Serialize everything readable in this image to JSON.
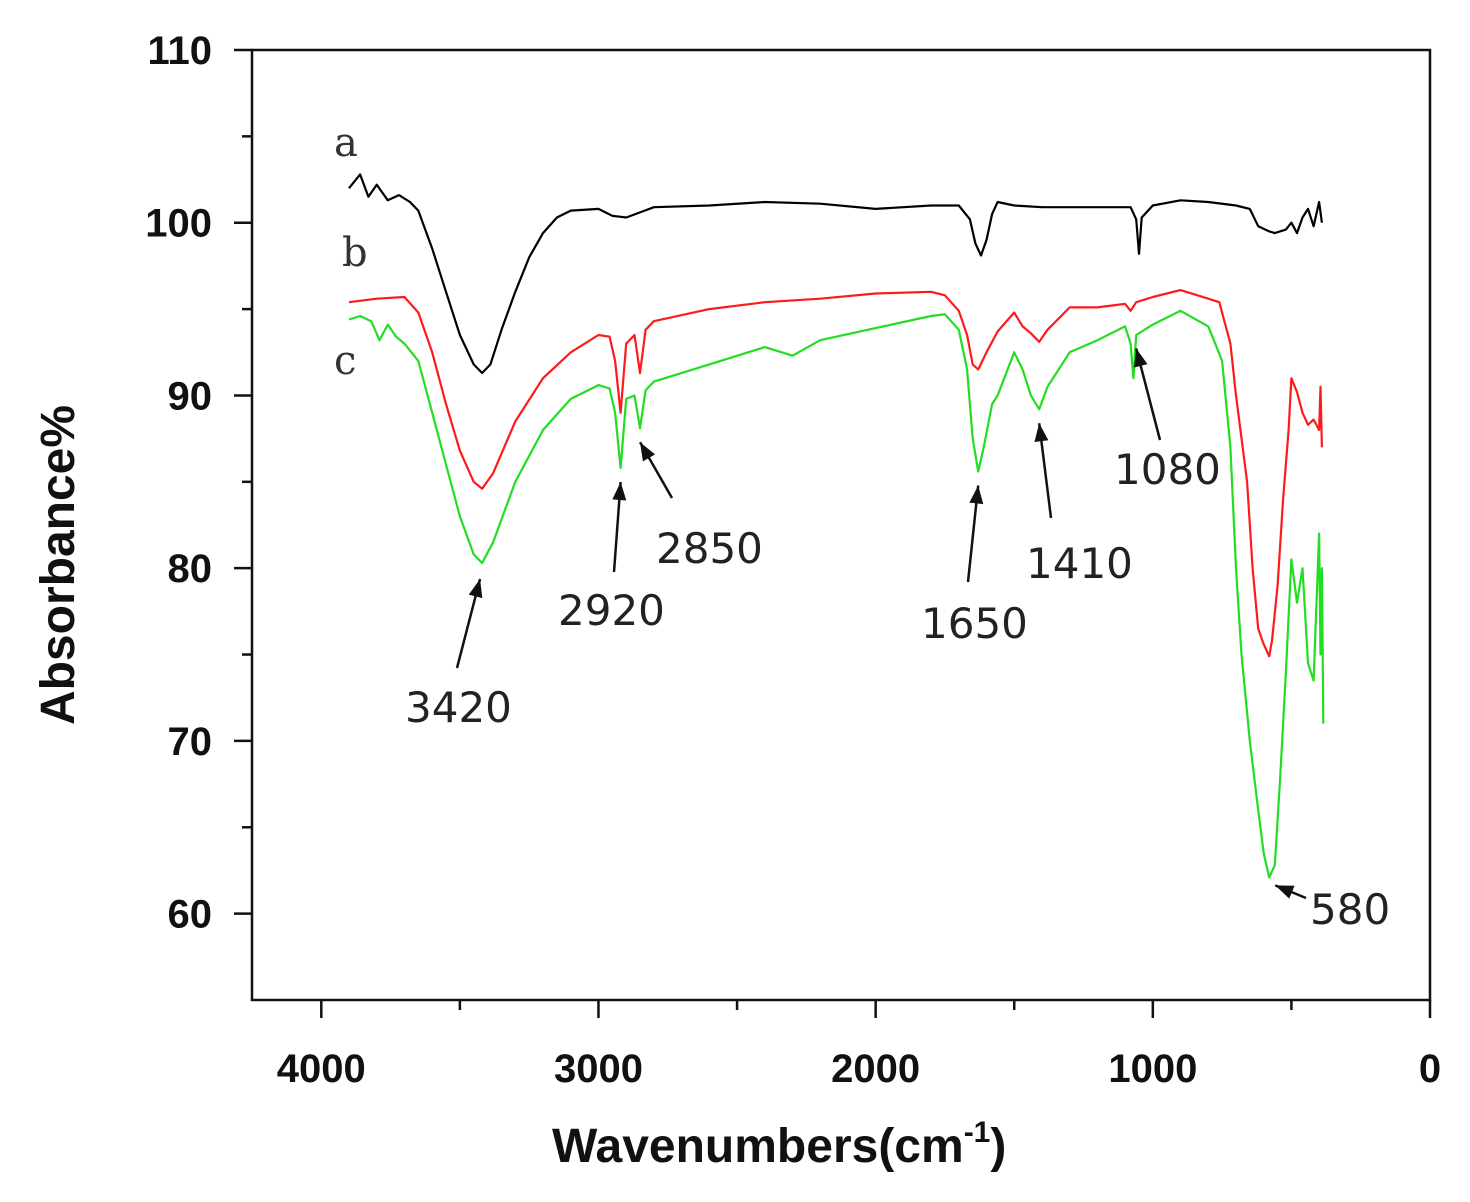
{
  "chart_data": {
    "type": "line",
    "xlabel": "Wavenumbers(cm",
    "xlabel_sup": "-1",
    "xlabel_close": ")",
    "ylabel": "Absorbance%",
    "xlim": [
      4250,
      0
    ],
    "ylim": [
      55,
      110
    ],
    "x_ticks": [
      4000,
      3000,
      2000,
      1000,
      0
    ],
    "y_ticks": [
      60,
      70,
      80,
      90,
      100,
      110
    ],
    "x_tick_labels": [
      "4000",
      "3000",
      "2000",
      "1000",
      "0"
    ],
    "y_tick_labels": [
      "60",
      "70",
      "80",
      "90",
      "100",
      "110"
    ],
    "series": [
      {
        "name": "a",
        "color": "#000000",
        "points": [
          [
            3900,
            102.0
          ],
          [
            3860,
            102.8
          ],
          [
            3830,
            101.5
          ],
          [
            3800,
            102.2
          ],
          [
            3760,
            101.3
          ],
          [
            3720,
            101.6
          ],
          [
            3680,
            101.2
          ],
          [
            3650,
            100.7
          ],
          [
            3600,
            98.5
          ],
          [
            3550,
            96.0
          ],
          [
            3500,
            93.5
          ],
          [
            3450,
            91.8
          ],
          [
            3420,
            91.3
          ],
          [
            3390,
            91.8
          ],
          [
            3350,
            93.8
          ],
          [
            3300,
            96.0
          ],
          [
            3250,
            98.0
          ],
          [
            3200,
            99.4
          ],
          [
            3150,
            100.3
          ],
          [
            3100,
            100.7
          ],
          [
            3000,
            100.8
          ],
          [
            2950,
            100.4
          ],
          [
            2900,
            100.3
          ],
          [
            2850,
            100.6
          ],
          [
            2800,
            100.9
          ],
          [
            2600,
            101.0
          ],
          [
            2400,
            101.2
          ],
          [
            2200,
            101.1
          ],
          [
            2000,
            100.8
          ],
          [
            1800,
            101.0
          ],
          [
            1700,
            101.0
          ],
          [
            1660,
            100.2
          ],
          [
            1640,
            98.8
          ],
          [
            1620,
            98.1
          ],
          [
            1600,
            99.0
          ],
          [
            1580,
            100.5
          ],
          [
            1560,
            101.2
          ],
          [
            1500,
            101.0
          ],
          [
            1400,
            100.9
          ],
          [
            1200,
            100.9
          ],
          [
            1080,
            100.9
          ],
          [
            1060,
            100.2
          ],
          [
            1050,
            98.2
          ],
          [
            1040,
            100.3
          ],
          [
            1000,
            101.0
          ],
          [
            900,
            101.3
          ],
          [
            800,
            101.2
          ],
          [
            700,
            101.0
          ],
          [
            650,
            100.8
          ],
          [
            620,
            99.8
          ],
          [
            580,
            99.5
          ],
          [
            560,
            99.4
          ],
          [
            520,
            99.6
          ],
          [
            500,
            100.0
          ],
          [
            480,
            99.4
          ],
          [
            460,
            100.3
          ],
          [
            440,
            100.8
          ],
          [
            420,
            99.8
          ],
          [
            400,
            101.2
          ],
          [
            390,
            100.0
          ]
        ]
      },
      {
        "name": "b",
        "color": "#ff1a1a",
        "points": [
          [
            3900,
            95.4
          ],
          [
            3800,
            95.6
          ],
          [
            3700,
            95.7
          ],
          [
            3650,
            94.8
          ],
          [
            3600,
            92.5
          ],
          [
            3550,
            89.5
          ],
          [
            3500,
            86.8
          ],
          [
            3450,
            85.0
          ],
          [
            3420,
            84.6
          ],
          [
            3380,
            85.5
          ],
          [
            3300,
            88.5
          ],
          [
            3200,
            91.0
          ],
          [
            3100,
            92.5
          ],
          [
            3000,
            93.5
          ],
          [
            2960,
            93.4
          ],
          [
            2940,
            92.0
          ],
          [
            2920,
            89.0
          ],
          [
            2900,
            93.0
          ],
          [
            2870,
            93.5
          ],
          [
            2850,
            91.3
          ],
          [
            2830,
            93.8
          ],
          [
            2800,
            94.3
          ],
          [
            2600,
            95.0
          ],
          [
            2400,
            95.4
          ],
          [
            2200,
            95.6
          ],
          [
            2000,
            95.9
          ],
          [
            1800,
            96.0
          ],
          [
            1750,
            95.8
          ],
          [
            1700,
            94.9
          ],
          [
            1670,
            93.5
          ],
          [
            1650,
            91.8
          ],
          [
            1630,
            91.5
          ],
          [
            1600,
            92.5
          ],
          [
            1560,
            93.7
          ],
          [
            1500,
            94.8
          ],
          [
            1470,
            94.0
          ],
          [
            1440,
            93.6
          ],
          [
            1410,
            93.1
          ],
          [
            1380,
            93.8
          ],
          [
            1300,
            95.1
          ],
          [
            1200,
            95.1
          ],
          [
            1100,
            95.3
          ],
          [
            1080,
            94.9
          ],
          [
            1060,
            95.4
          ],
          [
            1000,
            95.7
          ],
          [
            900,
            96.1
          ],
          [
            800,
            95.6
          ],
          [
            760,
            95.4
          ],
          [
            720,
            93.0
          ],
          [
            700,
            90.0
          ],
          [
            660,
            85.0
          ],
          [
            640,
            80.0
          ],
          [
            620,
            76.5
          ],
          [
            600,
            75.6
          ],
          [
            580,
            74.9
          ],
          [
            570,
            75.8
          ],
          [
            550,
            79.0
          ],
          [
            530,
            84.0
          ],
          [
            510,
            88.0
          ],
          [
            500,
            91.0
          ],
          [
            480,
            90.2
          ],
          [
            460,
            89.0
          ],
          [
            440,
            88.3
          ],
          [
            420,
            88.6
          ],
          [
            400,
            88.0
          ],
          [
            395,
            90.5
          ],
          [
            390,
            87.0
          ]
        ]
      },
      {
        "name": "c",
        "color": "#22dd22",
        "points": [
          [
            3900,
            94.4
          ],
          [
            3860,
            94.6
          ],
          [
            3820,
            94.3
          ],
          [
            3790,
            93.2
          ],
          [
            3760,
            94.1
          ],
          [
            3730,
            93.4
          ],
          [
            3700,
            93.0
          ],
          [
            3650,
            92.0
          ],
          [
            3600,
            89.0
          ],
          [
            3550,
            86.0
          ],
          [
            3500,
            83.0
          ],
          [
            3450,
            80.8
          ],
          [
            3420,
            80.3
          ],
          [
            3380,
            81.5
          ],
          [
            3300,
            85.0
          ],
          [
            3200,
            88.0
          ],
          [
            3100,
            89.8
          ],
          [
            3000,
            90.6
          ],
          [
            2960,
            90.4
          ],
          [
            2940,
            89.0
          ],
          [
            2920,
            85.8
          ],
          [
            2900,
            89.8
          ],
          [
            2870,
            90.0
          ],
          [
            2850,
            88.1
          ],
          [
            2830,
            90.3
          ],
          [
            2800,
            90.8
          ],
          [
            2600,
            91.8
          ],
          [
            2400,
            92.8
          ],
          [
            2300,
            92.3
          ],
          [
            2200,
            93.2
          ],
          [
            2000,
            93.9
          ],
          [
            1800,
            94.6
          ],
          [
            1750,
            94.7
          ],
          [
            1700,
            93.8
          ],
          [
            1670,
            91.5
          ],
          [
            1650,
            87.5
          ],
          [
            1630,
            85.6
          ],
          [
            1610,
            87.0
          ],
          [
            1580,
            89.5
          ],
          [
            1560,
            90.0
          ],
          [
            1500,
            92.5
          ],
          [
            1470,
            91.5
          ],
          [
            1440,
            90.0
          ],
          [
            1410,
            89.2
          ],
          [
            1380,
            90.5
          ],
          [
            1300,
            92.5
          ],
          [
            1200,
            93.2
          ],
          [
            1100,
            94.0
          ],
          [
            1080,
            93.0
          ],
          [
            1070,
            91.0
          ],
          [
            1060,
            93.5
          ],
          [
            1000,
            94.1
          ],
          [
            900,
            94.9
          ],
          [
            800,
            94.0
          ],
          [
            750,
            92.0
          ],
          [
            720,
            87.0
          ],
          [
            700,
            80.0
          ],
          [
            680,
            75.0
          ],
          [
            650,
            70.0
          ],
          [
            620,
            66.0
          ],
          [
            600,
            63.5
          ],
          [
            580,
            62.1
          ],
          [
            560,
            62.8
          ],
          [
            540,
            68.0
          ],
          [
            520,
            74.0
          ],
          [
            500,
            80.5
          ],
          [
            480,
            78.0
          ],
          [
            460,
            80.0
          ],
          [
            440,
            74.5
          ],
          [
            420,
            73.5
          ],
          [
            400,
            82.0
          ],
          [
            395,
            75.0
          ],
          [
            390,
            80.0
          ],
          [
            385,
            71.0
          ]
        ]
      }
    ],
    "peak_labels": [
      {
        "text": "3420",
        "x": 3420,
        "y": 80.3
      },
      {
        "text": "2920",
        "x": 2920,
        "y": 85.8
      },
      {
        "text": "2850",
        "x": 2850,
        "y": 88.1
      },
      {
        "text": "1650",
        "x": 1630,
        "y": 85.6
      },
      {
        "text": "1410",
        "x": 1410,
        "y": 89.2
      },
      {
        "text": "1080",
        "x": 1060,
        "y": 93.3
      },
      {
        "text": "580",
        "x": 580,
        "y": 62.1
      }
    ],
    "grid": false,
    "legend": "none"
  }
}
